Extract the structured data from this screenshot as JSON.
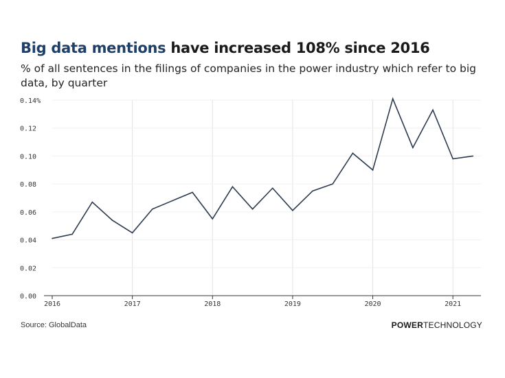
{
  "header": {
    "title_highlight": "Big data mentions",
    "title_rest": " have increased 108% since 2016",
    "subtitle": "% of all sentences in the filings of companies in the power industry which refer to big data, by quarter"
  },
  "footer": {
    "source": "Source: GlobalData",
    "brand_bold": "POWER",
    "brand_rest": "TECHNOLOGY"
  },
  "colors": {
    "line": "#2c3a4e",
    "grid": "#e3e3e3",
    "axis": "#333333",
    "title_highlight": "#1f3f66"
  },
  "chart_data": {
    "type": "line",
    "title": "Big data mentions have increased 108% since 2016",
    "xlabel": "",
    "ylabel": "",
    "x": [
      2016.0,
      2016.25,
      2016.5,
      2016.75,
      2017.0,
      2017.25,
      2017.5,
      2017.75,
      2018.0,
      2018.25,
      2018.5,
      2018.75,
      2019.0,
      2019.25,
      2019.5,
      2019.75,
      2020.0,
      2020.25,
      2020.5,
      2020.75,
      2021.0,
      2021.25
    ],
    "series": [
      {
        "name": "Big data mentions",
        "values": [
          0.041,
          0.044,
          0.067,
          0.054,
          0.045,
          0.062,
          0.068,
          0.074,
          0.055,
          0.078,
          0.062,
          0.077,
          0.061,
          0.075,
          0.08,
          0.102,
          0.09,
          0.141,
          0.106,
          0.133,
          0.098,
          0.1
        ]
      }
    ],
    "xlim": [
      2016.0,
      2021.35
    ],
    "ylim": [
      0,
      0.14
    ],
    "x_ticks": [
      2016,
      2017,
      2018,
      2019,
      2020,
      2021
    ],
    "x_tick_labels": [
      "2016",
      "2017",
      "2018",
      "2019",
      "2020",
      "2021"
    ],
    "y_ticks": [
      0,
      0.02,
      0.04,
      0.06,
      0.08,
      0.1,
      0.12,
      0.14
    ],
    "y_tick_labels": [
      "0.00",
      "0.02",
      "0.04",
      "0.06",
      "0.08",
      "0.10",
      "0.12",
      "0.14%"
    ],
    "grid": "vertical"
  }
}
